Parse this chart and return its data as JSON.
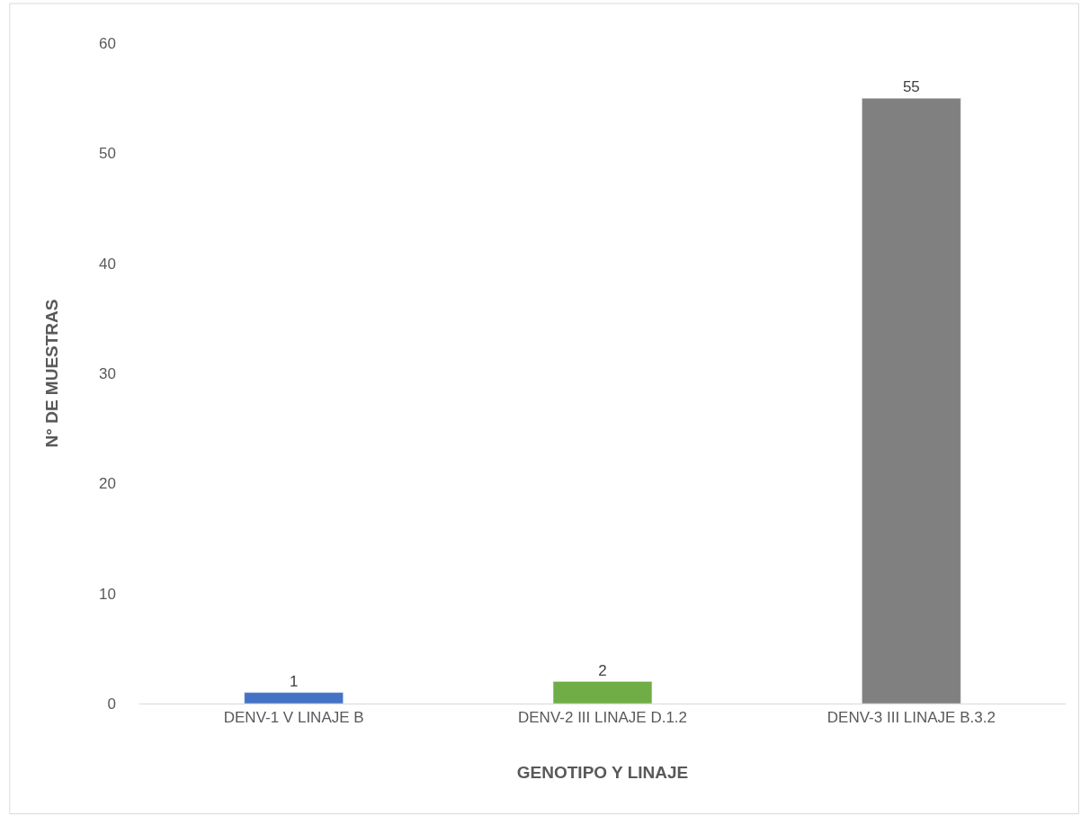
{
  "chart_data": {
    "type": "bar",
    "xlabel": "GENOTIPO Y LINAJE",
    "ylabel": "N° DE MUESTRAS",
    "categories": [
      "DENV-1 V LINAJE B",
      "DENV-2 III LINAJE D.1.2",
      "DENV-3 III LINAJE B.3.2"
    ],
    "values": [
      1,
      2,
      55
    ],
    "colors": [
      "#4472c4",
      "#70ad47",
      "#808080"
    ],
    "ylim": [
      0,
      60
    ],
    "yticks": [
      0,
      10,
      20,
      30,
      40,
      50,
      60
    ],
    "grid": false,
    "data_labels": true
  }
}
